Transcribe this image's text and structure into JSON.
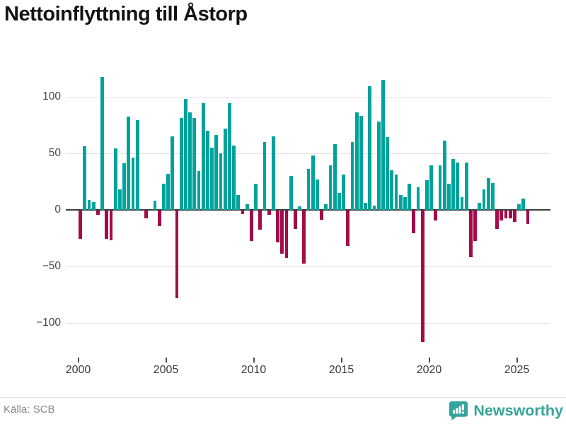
{
  "header": {
    "title": "Nettoinflyttning till Åstorp"
  },
  "footer": {
    "source_label": "Källa: SCB",
    "brand": "Newsworthy",
    "brand_icon": "bar-chart-speech-bubble-icon"
  },
  "colors": {
    "positive": "#00a39b",
    "negative": "#a30c48",
    "zero_line": "#3d3d3d",
    "gridline": "#e2e2e2",
    "brand_teal": "#35a49c"
  },
  "chart_data": {
    "type": "bar",
    "title": "Nettoinflyttning till Åstorp",
    "frequency": "quarterly",
    "start": "2000-Q1",
    "end": "2025-Q3",
    "xlabel": "",
    "ylabel": "",
    "ylim": [
      -130,
      130
    ],
    "grid": "horizontal",
    "legend": "none",
    "x_ticks": [
      "2000",
      "2005",
      "2010",
      "2015",
      "2020",
      "2025"
    ],
    "y_ticks": [
      {
        "value": 100,
        "label": "100"
      },
      {
        "value": 50,
        "label": "50"
      },
      {
        "value": 0,
        "label": "0"
      },
      {
        "value": -50,
        "label": "−50"
      },
      {
        "value": -100,
        "label": "−100"
      }
    ],
    "years": [
      {
        "year": 2000,
        "values": [
          -25,
          56,
          9,
          7
        ]
      },
      {
        "year": 2001,
        "values": [
          -4,
          117,
          -25,
          -26
        ]
      },
      {
        "year": 2002,
        "values": [
          54,
          18,
          41,
          82
        ]
      },
      {
        "year": 2003,
        "values": [
          46,
          79,
          0,
          -7
        ]
      },
      {
        "year": 2004,
        "values": [
          0,
          8,
          -14,
          23
        ]
      },
      {
        "year": 2005,
        "values": [
          32,
          65,
          -77,
          81
        ]
      },
      {
        "year": 2006,
        "values": [
          98,
          86,
          81,
          34
        ]
      },
      {
        "year": 2007,
        "values": [
          94,
          70,
          55,
          66
        ]
      },
      {
        "year": 2008,
        "values": [
          50,
          72,
          94,
          57
        ]
      },
      {
        "year": 2009,
        "values": [
          13,
          -3,
          5,
          -27
        ]
      },
      {
        "year": 2010,
        "values": [
          23,
          -17,
          60,
          -4
        ]
      },
      {
        "year": 2011,
        "values": [
          65,
          -28,
          -38,
          -42
        ]
      },
      {
        "year": 2012,
        "values": [
          30,
          -16,
          3,
          -47
        ]
      },
      {
        "year": 2013,
        "values": [
          36,
          48,
          27,
          -8
        ]
      },
      {
        "year": 2014,
        "values": [
          5,
          39,
          58,
          15
        ]
      },
      {
        "year": 2015,
        "values": [
          31,
          -31,
          60,
          86
        ]
      },
      {
        "year": 2016,
        "values": [
          83,
          6,
          109,
          4
        ]
      },
      {
        "year": 2017,
        "values": [
          78,
          115,
          64,
          35
        ]
      },
      {
        "year": 2018,
        "values": [
          31,
          13,
          11,
          23
        ]
      },
      {
        "year": 2019,
        "values": [
          -20,
          20,
          -116,
          26
        ]
      },
      {
        "year": 2020,
        "values": [
          39,
          -9,
          39,
          61
        ]
      },
      {
        "year": 2021,
        "values": [
          23,
          45,
          42,
          11
        ]
      },
      {
        "year": 2022,
        "values": [
          42,
          -41,
          -27,
          6
        ]
      },
      {
        "year": 2023,
        "values": [
          18,
          28,
          24,
          -16
        ]
      },
      {
        "year": 2024,
        "values": [
          -9,
          -7,
          -7,
          -10
        ]
      },
      {
        "year": 2025,
        "values": [
          5,
          10,
          -12
        ]
      }
    ]
  }
}
